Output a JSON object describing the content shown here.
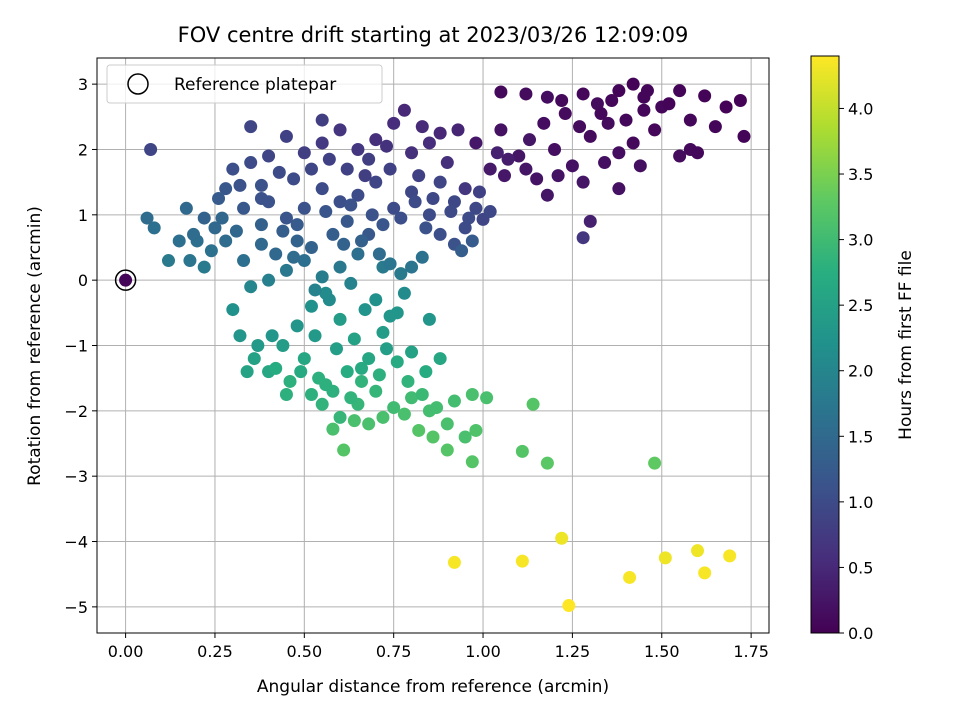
{
  "chart_data": {
    "type": "scatter",
    "title": "FOV centre drift starting at 2023/03/26 12:09:09",
    "xlabel": "Angular distance from reference (arcmin)",
    "ylabel": "Rotation from reference (arcmin)",
    "xlim": [
      -0.08,
      1.8
    ],
    "ylim": [
      -5.4,
      3.4
    ],
    "xticks": [
      0.0,
      0.25,
      0.5,
      0.75,
      1.0,
      1.25,
      1.5,
      1.75
    ],
    "xtick_labels": [
      "0.00",
      "0.25",
      "0.50",
      "0.75",
      "1.00",
      "1.25",
      "1.50",
      "1.75"
    ],
    "yticks": [
      3,
      2,
      1,
      0,
      -1,
      -2,
      -3,
      -4,
      -5
    ],
    "ytick_labels": [
      "3",
      "2",
      "1",
      "0",
      "−1",
      "−2",
      "−3",
      "−4",
      "−5"
    ],
    "grid": true,
    "legend": {
      "placement": "top-left",
      "entries": [
        "Reference platepar"
      ]
    },
    "reference_point": {
      "x": 0.0,
      "y": 0.0,
      "c": 0.0
    },
    "colorbar": {
      "label": "Hours from first FF file",
      "range": [
        0.0,
        4.4
      ],
      "ticks": [
        0.0,
        0.5,
        1.0,
        1.5,
        2.0,
        2.5,
        3.0,
        3.5,
        4.0
      ],
      "tick_labels": [
        "0.0",
        "0.5",
        "1.0",
        "1.5",
        "2.0",
        "2.5",
        "3.0",
        "3.5",
        "4.0"
      ],
      "colormap": "viridis"
    },
    "points": [
      [
        0.0,
        0.0,
        0.05
      ],
      [
        1.05,
        2.88,
        0.1
      ],
      [
        1.12,
        2.85,
        0.12
      ],
      [
        1.18,
        2.8,
        0.15
      ],
      [
        1.22,
        2.75,
        0.1
      ],
      [
        1.28,
        2.85,
        0.08
      ],
      [
        1.32,
        2.7,
        0.12
      ],
      [
        1.38,
        2.9,
        0.05
      ],
      [
        1.42,
        3.0,
        0.03
      ],
      [
        1.45,
        2.8,
        0.06
      ],
      [
        1.5,
        2.65,
        0.08
      ],
      [
        1.55,
        2.9,
        0.05
      ],
      [
        1.62,
        2.82,
        0.04
      ],
      [
        1.68,
        2.65,
        0.03
      ],
      [
        1.72,
        2.75,
        0.03
      ],
      [
        1.73,
        2.2,
        0.05
      ],
      [
        1.65,
        2.35,
        0.06
      ],
      [
        1.58,
        2.0,
        0.1
      ],
      [
        1.55,
        1.9,
        0.12
      ],
      [
        1.48,
        2.3,
        0.08
      ],
      [
        1.42,
        2.1,
        0.1
      ],
      [
        1.38,
        1.95,
        0.15
      ],
      [
        1.35,
        2.4,
        0.12
      ],
      [
        1.3,
        2.2,
        0.14
      ],
      [
        1.28,
        1.5,
        0.25
      ],
      [
        1.25,
        1.75,
        0.2
      ],
      [
        1.2,
        2.0,
        0.18
      ],
      [
        1.15,
        1.55,
        0.22
      ],
      [
        1.1,
        1.9,
        0.25
      ],
      [
        1.05,
        2.3,
        0.2
      ],
      [
        1.02,
        1.7,
        0.3
      ],
      [
        0.98,
        2.1,
        0.28
      ],
      [
        1.38,
        1.4,
        0.2
      ],
      [
        1.3,
        0.9,
        0.4
      ],
      [
        1.28,
        0.65,
        0.7
      ],
      [
        1.45,
        2.6,
        0.07
      ],
      [
        1.58,
        2.45,
        0.07
      ],
      [
        1.6,
        1.95,
        0.09
      ],
      [
        1.0,
        0.93,
        0.9
      ],
      [
        0.95,
        1.4,
        0.7
      ],
      [
        0.9,
        1.8,
        0.6
      ],
      [
        0.85,
        2.1,
        0.55
      ],
      [
        0.8,
        1.95,
        0.6
      ],
      [
        0.78,
        2.6,
        0.5
      ],
      [
        0.75,
        2.4,
        0.55
      ],
      [
        0.7,
        2.15,
        0.6
      ],
      [
        0.65,
        2.0,
        0.7
      ],
      [
        0.6,
        2.3,
        0.65
      ],
      [
        0.55,
        2.1,
        0.75
      ],
      [
        0.5,
        1.95,
        0.8
      ],
      [
        0.45,
        2.2,
        0.85
      ],
      [
        0.4,
        1.9,
        0.9
      ],
      [
        0.35,
        1.8,
        1.0
      ],
      [
        0.3,
        1.7,
        1.05
      ],
      [
        0.35,
        2.35,
        0.9
      ],
      [
        0.55,
        2.45,
        0.8
      ],
      [
        0.07,
        2.0,
        0.9
      ],
      [
        0.7,
        1.5,
        0.9
      ],
      [
        0.65,
        1.3,
        1.0
      ],
      [
        0.6,
        1.2,
        1.05
      ],
      [
        0.55,
        1.4,
        1.0
      ],
      [
        0.5,
        1.1,
        1.1
      ],
      [
        0.45,
        0.95,
        1.15
      ],
      [
        0.4,
        1.2,
        1.1
      ],
      [
        0.75,
        1.1,
        1.0
      ],
      [
        0.8,
        1.35,
        0.95
      ],
      [
        0.85,
        1.0,
        1.0
      ],
      [
        0.88,
        0.7,
        1.05
      ],
      [
        0.92,
        0.55,
        1.1
      ],
      [
        0.95,
        0.8,
        1.0
      ],
      [
        0.72,
        0.85,
        1.15
      ],
      [
        0.68,
        0.7,
        1.2
      ],
      [
        0.62,
        0.9,
        1.2
      ],
      [
        0.58,
        0.7,
        1.3
      ],
      [
        0.52,
        0.5,
        1.4
      ],
      [
        0.48,
        0.6,
        1.4
      ],
      [
        0.42,
        0.4,
        1.5
      ],
      [
        0.38,
        0.55,
        1.5
      ],
      [
        0.33,
        0.3,
        1.6
      ],
      [
        0.28,
        0.6,
        1.55
      ],
      [
        0.25,
        0.8,
        1.5
      ],
      [
        0.2,
        0.6,
        1.6
      ],
      [
        0.18,
        0.3,
        1.7
      ],
      [
        0.12,
        0.3,
        1.8
      ],
      [
        0.08,
        0.8,
        1.6
      ],
      [
        0.06,
        0.95,
        1.55
      ],
      [
        0.17,
        1.1,
        1.5
      ],
      [
        0.22,
        0.2,
        1.8
      ],
      [
        0.28,
        1.4,
        1.2
      ],
      [
        0.33,
        1.1,
        1.2
      ],
      [
        0.38,
        1.45,
        1.1
      ],
      [
        0.62,
        1.7,
        0.85
      ],
      [
        0.68,
        1.85,
        0.8
      ],
      [
        0.74,
        1.7,
        0.85
      ],
      [
        0.82,
        1.6,
        0.85
      ],
      [
        0.88,
        1.5,
        0.9
      ],
      [
        0.92,
        1.2,
        0.95
      ],
      [
        0.98,
        1.1,
        0.95
      ],
      [
        0.8,
        0.2,
        1.7
      ],
      [
        0.77,
        0.1,
        1.8
      ],
      [
        0.72,
        0.2,
        1.8
      ],
      [
        0.65,
        0.4,
        1.6
      ],
      [
        0.6,
        0.2,
        1.75
      ],
      [
        0.55,
        0.05,
        1.85
      ],
      [
        0.5,
        0.3,
        1.6
      ],
      [
        0.45,
        0.15,
        1.75
      ],
      [
        0.4,
        0.0,
        1.9
      ],
      [
        0.35,
        -0.1,
        2.0
      ],
      [
        0.3,
        -0.45,
        2.2
      ],
      [
        0.32,
        -0.85,
        2.3
      ],
      [
        0.36,
        -1.2,
        2.5
      ],
      [
        0.4,
        -1.4,
        2.6
      ],
      [
        0.44,
        -1.0,
        2.4
      ],
      [
        0.48,
        -0.7,
        2.3
      ],
      [
        0.52,
        -0.4,
        2.2
      ],
      [
        0.56,
        -0.2,
        2.1
      ],
      [
        0.6,
        -0.6,
        2.4
      ],
      [
        0.64,
        -0.9,
        2.5
      ],
      [
        0.68,
        -1.2,
        2.6
      ],
      [
        0.72,
        -0.8,
        2.4
      ],
      [
        0.76,
        -0.5,
        2.3
      ],
      [
        0.8,
        -1.1,
        2.5
      ],
      [
        0.84,
        -1.4,
        2.7
      ],
      [
        0.88,
        -1.2,
        2.6
      ],
      [
        0.85,
        -0.6,
        2.3
      ],
      [
        0.78,
        -0.2,
        2.1
      ],
      [
        0.7,
        -0.3,
        2.2
      ],
      [
        0.62,
        -1.4,
        2.7
      ],
      [
        0.58,
        -1.7,
        2.8
      ],
      [
        0.54,
        -1.5,
        2.8
      ],
      [
        0.5,
        -1.2,
        2.6
      ],
      [
        0.46,
        -1.55,
        2.8
      ],
      [
        0.42,
        -1.35,
        2.7
      ],
      [
        0.55,
        -1.9,
        2.85
      ],
      [
        0.6,
        -2.1,
        2.9
      ],
      [
        0.65,
        -1.9,
        2.9
      ],
      [
        0.7,
        -1.7,
        2.9
      ],
      [
        0.75,
        -1.95,
        3.0
      ],
      [
        0.8,
        -1.8,
        3.0
      ],
      [
        0.85,
        -2.0,
        3.05
      ],
      [
        0.9,
        -2.2,
        3.1
      ],
      [
        0.95,
        -2.4,
        3.1
      ],
      [
        0.92,
        -1.85,
        3.05
      ],
      [
        0.97,
        -1.75,
        3.1
      ],
      [
        1.01,
        -1.8,
        3.1
      ],
      [
        0.98,
        -2.3,
        3.15
      ],
      [
        0.9,
        -2.6,
        3.2
      ],
      [
        0.86,
        -2.4,
        3.2
      ],
      [
        0.82,
        -2.3,
        3.2
      ],
      [
        0.78,
        -2.05,
        3.1
      ],
      [
        0.72,
        -2.1,
        3.1
      ],
      [
        0.68,
        -2.2,
        3.1
      ],
      [
        0.64,
        -2.15,
        3.1
      ],
      [
        0.58,
        -2.28,
        3.1
      ],
      [
        0.61,
        -2.6,
        3.2
      ],
      [
        0.97,
        -2.78,
        3.2
      ],
      [
        1.11,
        -2.62,
        3.2
      ],
      [
        1.18,
        -2.8,
        3.25
      ],
      [
        1.14,
        -1.9,
        3.2
      ],
      [
        1.48,
        -2.8,
        3.3
      ],
      [
        0.92,
        -4.32,
        4.35
      ],
      [
        1.11,
        -4.3,
        4.35
      ],
      [
        1.22,
        -3.95,
        4.3
      ],
      [
        1.24,
        -4.98,
        4.4
      ],
      [
        1.41,
        -4.55,
        4.35
      ],
      [
        1.51,
        -4.25,
        4.3
      ],
      [
        1.6,
        -4.14,
        4.3
      ],
      [
        1.62,
        -4.48,
        4.35
      ],
      [
        1.69,
        -4.22,
        4.35
      ],
      [
        0.27,
        0.95,
        1.45
      ],
      [
        0.31,
        0.75,
        1.45
      ],
      [
        0.24,
        0.45,
        1.65
      ],
      [
        0.38,
        0.85,
        1.35
      ],
      [
        0.47,
        0.35,
        1.55
      ],
      [
        0.53,
        -0.15,
        1.95
      ],
      [
        0.57,
        -0.3,
        2.1
      ],
      [
        0.63,
        -0.05,
        1.95
      ],
      [
        0.67,
        -0.45,
        2.25
      ],
      [
        0.74,
        -0.55,
        2.3
      ],
      [
        0.73,
        -1.05,
        2.45
      ],
      [
        0.66,
        -1.35,
        2.65
      ],
      [
        0.59,
        -1.05,
        2.45
      ],
      [
        0.53,
        -0.85,
        2.35
      ],
      [
        0.49,
        -1.4,
        2.65
      ],
      [
        0.45,
        -1.75,
        2.8
      ],
      [
        0.41,
        -0.85,
        2.3
      ],
      [
        0.37,
        -1.0,
        2.35
      ],
      [
        0.34,
        -1.4,
        2.55
      ],
      [
        0.66,
        -1.55,
        2.85
      ],
      [
        0.71,
        -1.45,
        2.8
      ],
      [
        0.76,
        -1.25,
        2.65
      ],
      [
        0.79,
        -1.55,
        2.85
      ],
      [
        0.83,
        -1.75,
        2.95
      ],
      [
        0.87,
        -1.95,
        3.05
      ],
      [
        0.63,
        -1.8,
        2.85
      ],
      [
        0.56,
        -1.6,
        2.8
      ],
      [
        0.52,
        -1.75,
        2.8
      ],
      [
        0.61,
        0.55,
        1.4
      ],
      [
        0.66,
        0.6,
        1.35
      ],
      [
        0.71,
        0.4,
        1.55
      ],
      [
        0.74,
        0.25,
        1.7
      ],
      [
        0.83,
        0.35,
        1.65
      ],
      [
        0.94,
        0.45,
        1.3
      ],
      [
        0.97,
        0.6,
        1.25
      ],
      [
        1.02,
        1.05,
        0.95
      ],
      [
        1.07,
        1.85,
        0.35
      ],
      [
        1.13,
        2.15,
        0.25
      ],
      [
        1.17,
        2.4,
        0.15
      ],
      [
        1.23,
        2.55,
        0.12
      ],
      [
        1.27,
        2.35,
        0.14
      ],
      [
        1.33,
        2.55,
        0.1
      ],
      [
        1.36,
        2.75,
        0.08
      ],
      [
        1.4,
        2.45,
        0.09
      ],
      [
        1.46,
        2.9,
        0.06
      ],
      [
        1.52,
        2.7,
        0.05
      ],
      [
        1.44,
        1.75,
        0.18
      ],
      [
        1.34,
        1.8,
        0.18
      ],
      [
        1.21,
        1.6,
        0.22
      ],
      [
        1.18,
        1.3,
        0.25
      ],
      [
        1.12,
        1.7,
        0.25
      ],
      [
        1.06,
        1.6,
        0.28
      ],
      [
        0.93,
        2.3,
        0.45
      ],
      [
        0.88,
        2.25,
        0.48
      ],
      [
        0.83,
        2.35,
        0.52
      ],
      [
        0.73,
        2.05,
        0.62
      ],
      [
        0.67,
        1.6,
        0.8
      ],
      [
        0.57,
        1.85,
        0.85
      ],
      [
        0.52,
        1.7,
        0.92
      ],
      [
        0.47,
        1.55,
        1.0
      ],
      [
        0.43,
        1.65,
        1.0
      ],
      [
        0.38,
        1.25,
        1.1
      ],
      [
        0.32,
        1.45,
        1.1
      ],
      [
        0.26,
        1.25,
        1.25
      ],
      [
        0.22,
        0.95,
        1.4
      ],
      [
        0.19,
        0.7,
        1.55
      ],
      [
        0.15,
        0.6,
        1.6
      ],
      [
        0.44,
        0.75,
        1.3
      ],
      [
        0.48,
        0.85,
        1.25
      ],
      [
        0.56,
        1.05,
        1.15
      ],
      [
        0.63,
        1.15,
        1.1
      ],
      [
        0.69,
        1.0,
        1.1
      ],
      [
        0.77,
        0.95,
        1.05
      ],
      [
        0.84,
        0.8,
        1.1
      ],
      [
        0.81,
        1.2,
        1.0
      ],
      [
        0.86,
        1.25,
        0.95
      ],
      [
        0.91,
        1.05,
        0.98
      ],
      [
        0.96,
        0.95,
        1.0
      ],
      [
        0.99,
        1.35,
        0.85
      ],
      [
        1.04,
        1.95,
        0.4
      ]
    ]
  }
}
